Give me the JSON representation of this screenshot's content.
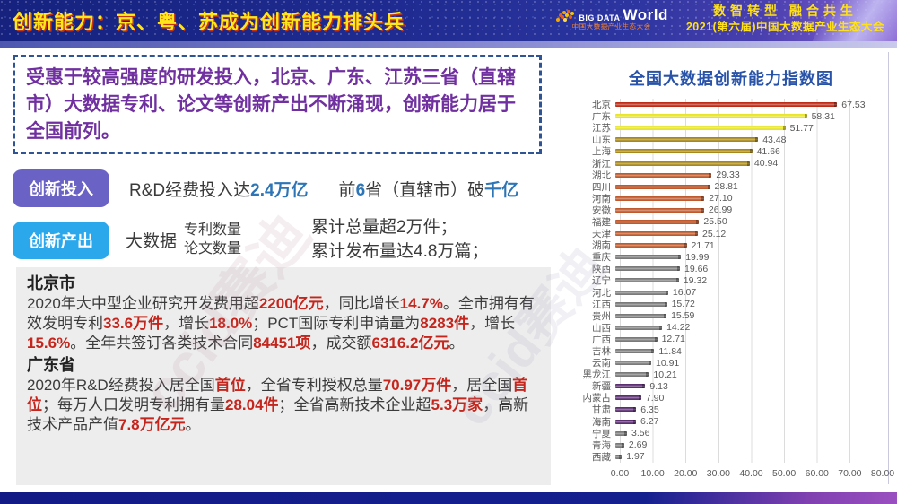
{
  "header": {
    "title": "创新能力：京、粤、苏成为创新能力排头兵",
    "logo": {
      "big": "BIG DATA",
      "world": "World",
      "sub": "中国大数据产业生态大会"
    },
    "slogan": "数智转型 融合共生",
    "conference": "2021(第六届)中国大数据产业生态大会"
  },
  "intro": {
    "text": "受惠于较高强度的研发投入，北京、广东、江苏三省（直辖市）大数据专利、论文等创新产出不断涌现，创新能力居于全国前列。"
  },
  "invest": {
    "badge": "创新投入",
    "line1": [
      {
        "t": "R&D经费投入达"
      },
      {
        "t": "2.4万亿",
        "c": "blue"
      }
    ],
    "line2": [
      {
        "t": "前"
      },
      {
        "t": "6",
        "c": "blue"
      },
      {
        "t": "省（直辖市）破"
      },
      {
        "t": "千亿",
        "c": "blue"
      }
    ]
  },
  "output": {
    "badge": "创新产出",
    "prefix": "大数据",
    "stack": [
      "专利数量",
      "论文数量"
    ],
    "results": [
      "累计总量超2万件；",
      "累计发布量达4.8万篇；"
    ]
  },
  "beijing": {
    "title": "北京市",
    "body": [
      {
        "t": "2020年大中型企业研究开发费用超"
      },
      {
        "t": "2200亿元",
        "c": "red"
      },
      {
        "t": "，同比增长"
      },
      {
        "t": "14.7%",
        "c": "red"
      },
      {
        "t": "。全市拥有有效发明专利"
      },
      {
        "t": "33.6万件",
        "c": "red"
      },
      {
        "t": "，增长"
      },
      {
        "t": "18.0%",
        "c": "red"
      },
      {
        "t": "；PCT国际专利申请量为"
      },
      {
        "t": "8283件",
        "c": "red"
      },
      {
        "t": "，增长"
      },
      {
        "t": "15.6%",
        "c": "red"
      },
      {
        "t": "。全年共签订各类技术合同"
      },
      {
        "t": "84451项",
        "c": "red"
      },
      {
        "t": "，成交额"
      },
      {
        "t": "6316.2亿元",
        "c": "red"
      },
      {
        "t": "。"
      }
    ]
  },
  "guangdong": {
    "title": "广东省",
    "body": [
      {
        "t": "2020年R&D经费投入居全国"
      },
      {
        "t": "首位",
        "c": "red"
      },
      {
        "t": "，全省专利授权总量"
      },
      {
        "t": "70.97万件",
        "c": "red"
      },
      {
        "t": "，居全国"
      },
      {
        "t": "首位",
        "c": "red"
      },
      {
        "t": "；每万人口发明专利拥有量"
      },
      {
        "t": "28.04件",
        "c": "red"
      },
      {
        "t": "；全省高新技术企业超"
      },
      {
        "t": "5.3万家",
        "c": "red"
      },
      {
        "t": "，高新技术产品产值"
      },
      {
        "t": "7.8万亿元",
        "c": "red"
      },
      {
        "t": "。"
      }
    ]
  },
  "watermark": "ccid赛迪",
  "chart_data": {
    "type": "bar",
    "orientation": "horizontal",
    "title": "全国大数据创新能力指数图",
    "categories": [
      "北京",
      "广东",
      "江苏",
      "山东",
      "上海",
      "浙江",
      "湖北",
      "四川",
      "河南",
      "安徽",
      "福建",
      "天津",
      "湖南",
      "重庆",
      "陕西",
      "辽宁",
      "河北",
      "江西",
      "贵州",
      "山西",
      "广西",
      "吉林",
      "云南",
      "黑龙江",
      "新疆",
      "内蒙古",
      "甘肃",
      "海南",
      "宁夏",
      "青海",
      "西藏"
    ],
    "values": [
      67.53,
      58.31,
      51.77,
      43.48,
      41.66,
      40.94,
      29.33,
      28.81,
      27.1,
      26.99,
      25.5,
      25.12,
      21.71,
      19.99,
      19.66,
      19.32,
      16.07,
      15.72,
      15.59,
      14.22,
      12.71,
      11.84,
      10.91,
      10.21,
      9.13,
      7.9,
      6.35,
      6.27,
      3.56,
      2.69,
      1.97
    ],
    "colors": [
      "#be2b17",
      "#e8e428",
      "#e8e428",
      "#a8881b",
      "#a8881b",
      "#a8881b",
      "#c05a2e",
      "#c05a2e",
      "#c05a2e",
      "#c05a2e",
      "#c05a2e",
      "#c05a2e",
      "#c05a2e",
      "#7a7a7a",
      "#7a7a7a",
      "#7a7a7a",
      "#7a7a7a",
      "#7a7a7a",
      "#7a7a7a",
      "#7a7a7a",
      "#7a7a7a",
      "#7a7a7a",
      "#7a7a7a",
      "#7a7a7a",
      "#5c2e72",
      "#5c2e72",
      "#5c2e72",
      "#5c2e72",
      "#7a7a7a",
      "#7a7a7a",
      "#7a7a7a"
    ],
    "x_ticks": [
      "0.00",
      "10.00",
      "20.00",
      "30.00",
      "40.00",
      "50.00",
      "60.00",
      "70.00",
      "80.00"
    ],
    "xlim": [
      0,
      80
    ],
    "grid": true,
    "legend": false
  }
}
